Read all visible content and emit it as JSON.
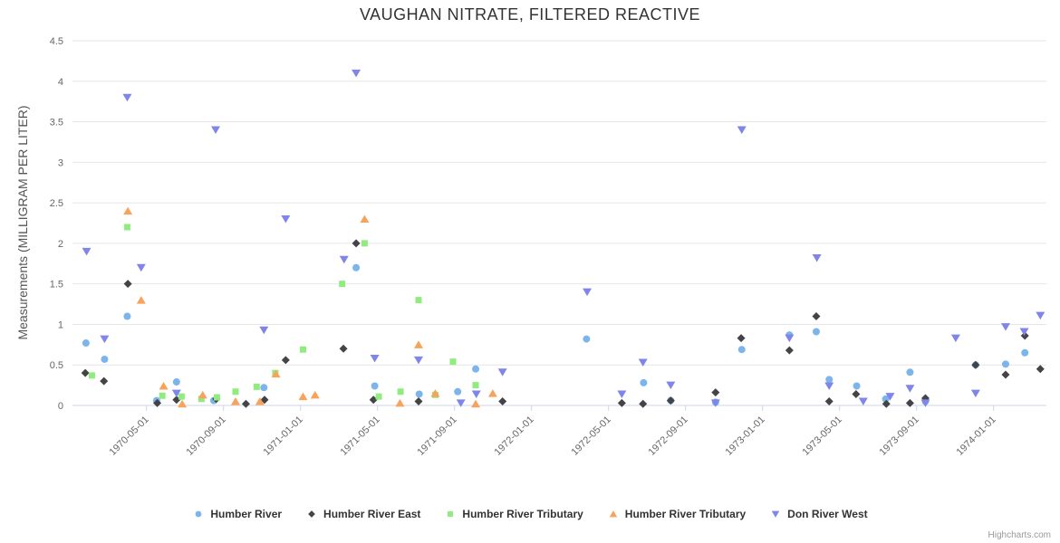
{
  "chart_data": {
    "type": "scatter",
    "title": "VAUGHAN NITRATE, FILTERED REACTIVE",
    "ylabel": "Measurements (MILLIGRAM PER LITER)",
    "xlabel": "",
    "ylim": [
      0,
      4.5
    ],
    "y_tick_interval": 0.5,
    "y_tick_labels": [
      "0",
      "0.5",
      "1",
      "1.5",
      "2",
      "2.5",
      "3",
      "3.5",
      "4",
      "4.5"
    ],
    "x_ticks": [
      "1970-05-01",
      "1970-09-01",
      "1971-01-01",
      "1971-05-01",
      "1971-09-01",
      "1972-01-01",
      "1972-05-01",
      "1972-09-01",
      "1973-01-01",
      "1973-05-01",
      "1973-09-01",
      "1974-01-01"
    ],
    "grid": "horizontal",
    "legend_position": "bottom",
    "axis_line_color": "#ccd6eb",
    "grid_color": "#e6e6e6",
    "label_color": "#666666",
    "credit": "Highcharts.com",
    "series": [
      {
        "name": "Humber River",
        "marker": "circle",
        "color": "#7cb5ec",
        "points": [
          [
            "1970-01-27",
            0.77
          ],
          [
            "1970-02-26",
            0.57
          ],
          [
            "1970-04-01",
            1.1
          ],
          [
            "1970-05-17",
            0.06
          ],
          [
            "1970-06-18",
            0.29
          ],
          [
            "1970-08-16",
            0.06
          ],
          [
            "1970-11-04",
            0.22
          ],
          [
            "1971-03-28",
            1.7
          ],
          [
            "1971-04-27",
            0.24
          ],
          [
            "1971-07-06",
            0.14
          ],
          [
            "1971-09-06",
            0.17
          ],
          [
            "1971-10-04",
            0.45
          ],
          [
            "1972-03-27",
            0.82
          ],
          [
            "1972-06-26",
            0.28
          ],
          [
            "1972-08-08",
            0.06
          ],
          [
            "1972-10-18",
            0.04
          ],
          [
            "1972-11-29",
            0.69
          ],
          [
            "1973-02-13",
            0.87
          ],
          [
            "1973-03-25",
            0.91
          ],
          [
            "1973-04-15",
            0.32
          ],
          [
            "1973-05-28",
            0.24
          ],
          [
            "1973-07-13",
            0.08
          ],
          [
            "1973-08-21",
            0.41
          ],
          [
            "1973-09-15",
            0.05
          ],
          [
            "1973-12-03",
            0.5
          ],
          [
            "1974-01-20",
            0.51
          ],
          [
            "1974-02-20",
            0.65
          ]
        ]
      },
      {
        "name": "Humber River East",
        "marker": "diamond",
        "color": "#434348",
        "points": [
          [
            "1970-01-26",
            0.4
          ],
          [
            "1970-02-25",
            0.3
          ],
          [
            "1970-04-02",
            1.5
          ],
          [
            "1970-05-18",
            0.03
          ],
          [
            "1970-06-18",
            0.07
          ],
          [
            "1970-08-20",
            0.08
          ],
          [
            "1970-10-06",
            0.02
          ],
          [
            "1970-11-05",
            0.07
          ],
          [
            "1970-12-08",
            0.56
          ],
          [
            "1971-03-08",
            0.7
          ],
          [
            "1971-03-28",
            2.0
          ],
          [
            "1971-04-25",
            0.07
          ],
          [
            "1971-07-05",
            0.05
          ],
          [
            "1971-11-16",
            0.05
          ],
          [
            "1972-05-22",
            0.03
          ],
          [
            "1972-06-25",
            0.02
          ],
          [
            "1972-08-08",
            0.06
          ],
          [
            "1972-10-18",
            0.16
          ],
          [
            "1972-11-28",
            0.83
          ],
          [
            "1973-02-13",
            0.68
          ],
          [
            "1973-03-25",
            1.1
          ],
          [
            "1973-04-15",
            0.05
          ],
          [
            "1973-05-27",
            0.14
          ],
          [
            "1973-07-14",
            0.02
          ],
          [
            "1973-08-21",
            0.03
          ],
          [
            "1973-09-15",
            0.09
          ],
          [
            "1973-12-03",
            0.5
          ],
          [
            "1974-01-20",
            0.38
          ],
          [
            "1974-02-20",
            0.86
          ],
          [
            "1974-03-14",
            0.45
          ]
        ]
      },
      {
        "name": "Humber River Tributary",
        "marker": "square",
        "color": "#90ed7d",
        "points": [
          [
            "1970-02-06",
            0.37
          ],
          [
            "1970-04-01",
            2.2
          ],
          [
            "1970-05-26",
            0.12
          ],
          [
            "1970-06-26",
            0.11
          ],
          [
            "1970-07-27",
            0.08
          ],
          [
            "1970-08-21",
            0.1
          ],
          [
            "1970-09-20",
            0.17
          ],
          [
            "1970-10-23",
            0.23
          ],
          [
            "1970-11-22",
            0.4
          ],
          [
            "1971-01-05",
            0.69
          ],
          [
            "1971-03-06",
            1.5
          ],
          [
            "1971-04-11",
            2.0
          ],
          [
            "1971-05-03",
            0.11
          ],
          [
            "1971-06-07",
            0.17
          ],
          [
            "1971-07-05",
            1.3
          ],
          [
            "1971-08-01",
            0.13
          ],
          [
            "1971-08-29",
            0.54
          ],
          [
            "1971-10-04",
            0.25
          ]
        ]
      },
      {
        "name": "Humber River Tributary",
        "marker": "triangle",
        "color": "#f7a35c",
        "points": [
          [
            "1970-04-02",
            2.4
          ],
          [
            "1970-04-23",
            1.3
          ],
          [
            "1970-05-28",
            0.24
          ],
          [
            "1970-06-27",
            0.02
          ],
          [
            "1970-07-29",
            0.13
          ],
          [
            "1970-09-20",
            0.05
          ],
          [
            "1970-10-28",
            0.05
          ],
          [
            "1970-11-23",
            0.39
          ],
          [
            "1971-01-05",
            0.11
          ],
          [
            "1971-01-24",
            0.13
          ],
          [
            "1971-04-11",
            2.3
          ],
          [
            "1971-06-06",
            0.03
          ],
          [
            "1971-07-05",
            0.75
          ],
          [
            "1971-08-01",
            0.15
          ],
          [
            "1971-10-04",
            0.02
          ],
          [
            "1971-10-31",
            0.15
          ]
        ]
      },
      {
        "name": "Don River West",
        "marker": "triangle-down",
        "color": "#8085e9",
        "points": [
          [
            "1970-01-28",
            1.9
          ],
          [
            "1970-02-26",
            0.82
          ],
          [
            "1970-04-01",
            3.8
          ],
          [
            "1970-04-23",
            1.7
          ],
          [
            "1970-06-18",
            0.15
          ],
          [
            "1970-08-19",
            3.4
          ],
          [
            "1970-11-04",
            0.93
          ],
          [
            "1970-12-08",
            2.3
          ],
          [
            "1971-03-09",
            1.8
          ],
          [
            "1971-03-28",
            4.1
          ],
          [
            "1971-04-27",
            0.58
          ],
          [
            "1971-07-05",
            0.56
          ],
          [
            "1971-09-11",
            0.03
          ],
          [
            "1971-10-05",
            0.14
          ],
          [
            "1971-11-16",
            0.41
          ],
          [
            "1972-03-28",
            1.4
          ],
          [
            "1972-05-22",
            0.14
          ],
          [
            "1972-06-25",
            0.53
          ],
          [
            "1972-08-08",
            0.25
          ],
          [
            "1972-10-18",
            0.03
          ],
          [
            "1972-11-29",
            3.4
          ],
          [
            "1973-02-13",
            0.83
          ],
          [
            "1973-03-26",
            1.82
          ],
          [
            "1973-04-15",
            0.24
          ],
          [
            "1973-06-08",
            0.05
          ],
          [
            "1973-07-20",
            0.11
          ],
          [
            "1973-08-21",
            0.21
          ],
          [
            "1973-09-15",
            0.03
          ],
          [
            "1973-11-02",
            0.83
          ],
          [
            "1973-12-03",
            0.15
          ],
          [
            "1974-01-20",
            0.97
          ],
          [
            "1974-02-19",
            0.91
          ],
          [
            "1974-03-14",
            1.11
          ]
        ]
      }
    ]
  }
}
